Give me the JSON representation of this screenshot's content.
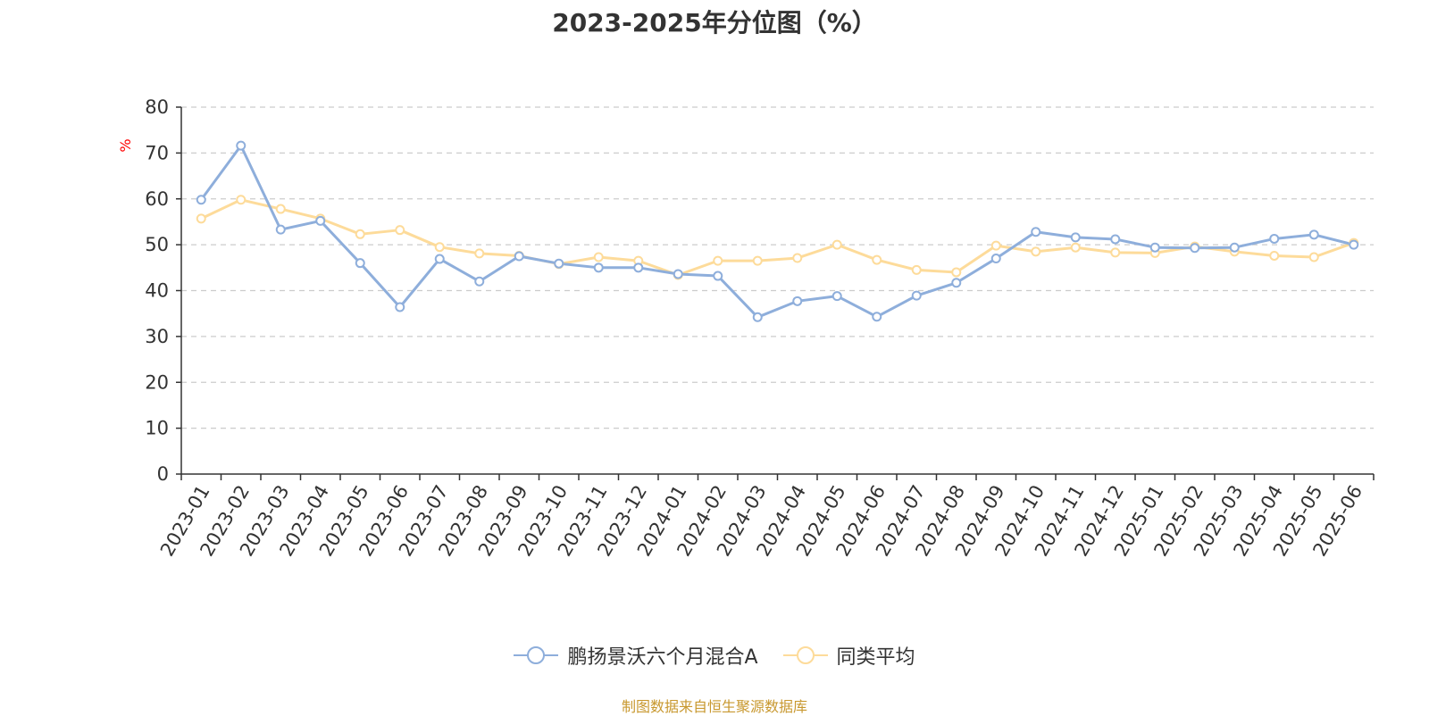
{
  "chart_data": {
    "type": "line",
    "title": "2023-2025年分位图（%）",
    "ylabel": "%",
    "xlabel": "",
    "ylim": [
      0,
      80
    ],
    "yticks": [
      0,
      10,
      20,
      30,
      40,
      50,
      60,
      70,
      80
    ],
    "grid": "horizontal-dashed",
    "legend_position": "bottom",
    "categories": [
      "2023-01",
      "2023-02",
      "2023-03",
      "2023-04",
      "2023-05",
      "2023-06",
      "2023-07",
      "2023-08",
      "2023-09",
      "2023-10",
      "2023-11",
      "2023-12",
      "2024-01",
      "2024-02",
      "2024-03",
      "2024-04",
      "2024-05",
      "2024-06",
      "2024-07",
      "2024-08",
      "2024-09",
      "2024-10",
      "2024-11",
      "2024-12",
      "2025-01",
      "2025-02",
      "2025-03",
      "2025-04",
      "2025-05",
      "2025-06"
    ],
    "series": [
      {
        "name": "鹏扬景沃六个月混合A",
        "color": "#8eaedb",
        "values": [
          59.8,
          71.6,
          53.3,
          55.2,
          46.0,
          36.4,
          46.9,
          42.0,
          47.5,
          45.9,
          45.0,
          45.0,
          43.6,
          43.2,
          34.2,
          37.7,
          38.8,
          34.3,
          38.9,
          41.7,
          47.0,
          52.8,
          51.6,
          51.2,
          49.4,
          49.3,
          49.4,
          51.3,
          52.2,
          50.0
        ]
      },
      {
        "name": "同类平均",
        "color": "#fddb9a",
        "values": [
          55.7,
          59.8,
          57.8,
          55.7,
          52.3,
          53.2,
          49.5,
          48.1,
          47.6,
          45.8,
          47.3,
          46.5,
          43.4,
          46.5,
          46.5,
          47.1,
          50.0,
          46.7,
          44.5,
          44.0,
          49.8,
          48.5,
          49.4,
          48.3,
          48.2,
          49.6,
          48.5,
          47.6,
          47.3,
          50.4
        ]
      }
    ],
    "source": "制图数据来自恒生聚源数据库"
  }
}
